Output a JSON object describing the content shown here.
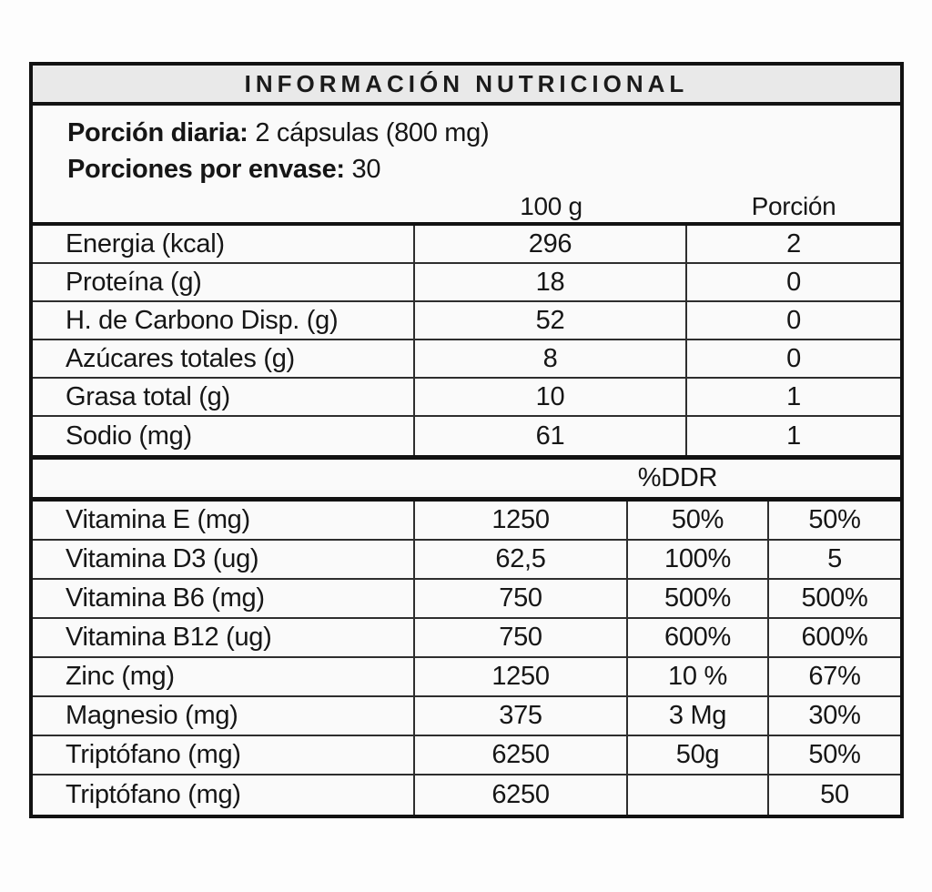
{
  "title": "INFORMACIÓN NUTRICIONAL",
  "serving": {
    "label": "Porción diaria:",
    "value": "2 cápsulas (800 mg)"
  },
  "servings_per_container": {
    "label": "Porciones por envase:",
    "value": "30"
  },
  "columns": {
    "per_100g": "100 g",
    "per_serving": "Porción"
  },
  "ddr_header": "%DDR",
  "macro_rows": [
    {
      "label": "Energia (kcal)",
      "per_100g": "296",
      "per_serving": "2"
    },
    {
      "label": "Proteína (g)",
      "per_100g": "18",
      "per_serving": "0"
    },
    {
      "label": "H. de Carbono Disp. (g)",
      "per_100g": "52",
      "per_serving": "0"
    },
    {
      "label": "Azúcares totales (g)",
      "per_100g": "8",
      "per_serving": "0"
    },
    {
      "label": "Grasa total (g)",
      "per_100g": "10",
      "per_serving": "1"
    },
    {
      "label": "Sodio (mg)",
      "per_100g": "61",
      "per_serving": "1"
    }
  ],
  "micro_rows": [
    {
      "label": "Vitamina E (mg)",
      "per_100g": "1250",
      "ddr_100g": "50%",
      "ddr_serving": "50%"
    },
    {
      "label": "Vitamina D3 (ug)",
      "per_100g": "62,5",
      "ddr_100g": "100%",
      "ddr_serving": "5"
    },
    {
      "label": "Vitamina B6 (mg)",
      "per_100g": "750",
      "ddr_100g": "500%",
      "ddr_serving": "500%"
    },
    {
      "label": "Vitamina B12 (ug)",
      "per_100g": "750",
      "ddr_100g": "600%",
      "ddr_serving": "600%"
    },
    {
      "label": "Zinc (mg)",
      "per_100g": "1250",
      "ddr_100g": "10 %",
      "ddr_serving": "67%"
    },
    {
      "label": "Magnesio (mg)",
      "per_100g": "375",
      "ddr_100g": "3 Mg",
      "ddr_serving": "30%"
    },
    {
      "label": "Triptófano (mg)",
      "per_100g": "6250",
      "ddr_100g": "50g",
      "ddr_serving": "50%"
    },
    {
      "label": "Triptófano (mg)",
      "per_100g": "6250",
      "ddr_100g": "",
      "ddr_serving": "50"
    }
  ]
}
